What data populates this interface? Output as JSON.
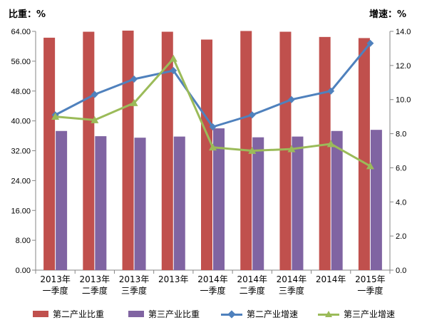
{
  "colors": {
    "secondary_share": "#C0504D",
    "tertiary_share": "#8064A2",
    "secondary_growth": "#4F81BD",
    "tertiary_growth": "#9BBB59",
    "axis": "#868686"
  },
  "chart_data": {
    "type": "bar",
    "title": "",
    "ylabel": "比重：%",
    "ylabel_right": "增速：%",
    "xlabel": "",
    "categories": [
      [
        "2013年",
        "一季度"
      ],
      [
        "2013年",
        "二季度"
      ],
      [
        "2013年",
        "三季度"
      ],
      [
        "2013年",
        ""
      ],
      [
        "2014年",
        "一季度"
      ],
      [
        "2014年",
        "二季度"
      ],
      [
        "2014年",
        "三季度"
      ],
      [
        "2014年",
        ""
      ],
      [
        "2015年",
        "一季度"
      ]
    ],
    "ylim": [
      0,
      64
    ],
    "ylim_right": [
      0,
      14
    ],
    "yticks": [
      "0.00",
      "8.00",
      "16.00",
      "24.00",
      "32.00",
      "40.00",
      "48.00",
      "56.00",
      "64.00"
    ],
    "yticks_right": [
      "0.0",
      "2.0",
      "4.0",
      "6.0",
      "8.0",
      "10.0",
      "12.0",
      "14.0"
    ],
    "grid": false,
    "legend_position": "bottom",
    "series": [
      {
        "name": "第二产业比重",
        "type": "bar",
        "axis": "left",
        "values": [
          62.3,
          63.9,
          64.2,
          63.9,
          61.8,
          64.1,
          63.9,
          62.5,
          62.2
        ]
      },
      {
        "name": "第三产业比重",
        "type": "bar",
        "axis": "left",
        "values": [
          37.3,
          35.9,
          35.5,
          35.8,
          38.0,
          35.6,
          35.8,
          37.3,
          37.6
        ]
      },
      {
        "name": "第二产业增速",
        "type": "line",
        "marker": "diamond",
        "axis": "right",
        "values": [
          9.1,
          10.3,
          11.2,
          11.7,
          8.4,
          9.1,
          10.0,
          10.5,
          13.3
        ]
      },
      {
        "name": "第三产业增速",
        "type": "line",
        "marker": "triangle",
        "axis": "right",
        "values": [
          9.0,
          8.8,
          9.8,
          12.4,
          7.2,
          7.0,
          7.1,
          7.4,
          6.1
        ]
      }
    ]
  }
}
